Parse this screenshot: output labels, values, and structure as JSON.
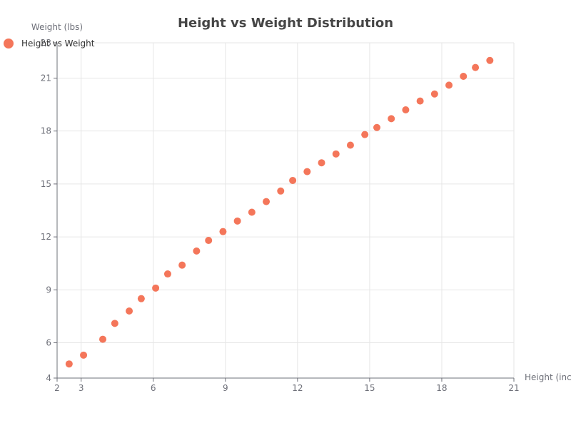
{
  "chart_data": {
    "type": "scatter",
    "title": "Height vs Weight Distribution",
    "xlabel": "Height (inches)",
    "ylabel": "Weight (lbs)",
    "xlim": [
      2,
      21
    ],
    "ylim": [
      4,
      23
    ],
    "x_ticks": [
      2,
      3,
      6,
      9,
      12,
      15,
      18,
      21
    ],
    "y_ticks": [
      4,
      6,
      9,
      12,
      15,
      18,
      21,
      23
    ],
    "grid": true,
    "legend": {
      "position": "top-left",
      "entries": [
        "Height vs Weight"
      ]
    },
    "series": [
      {
        "name": "Height vs Weight",
        "color": "#f4765a",
        "points": [
          [
            2.5,
            4.8
          ],
          [
            3.1,
            5.3
          ],
          [
            3.9,
            6.2
          ],
          [
            4.4,
            7.1
          ],
          [
            5.0,
            7.8
          ],
          [
            5.5,
            8.5
          ],
          [
            6.1,
            9.1
          ],
          [
            6.6,
            9.9
          ],
          [
            7.2,
            10.4
          ],
          [
            7.8,
            11.2
          ],
          [
            8.3,
            11.8
          ],
          [
            8.9,
            12.3
          ],
          [
            9.5,
            12.9
          ],
          [
            10.1,
            13.4
          ],
          [
            10.7,
            14.0
          ],
          [
            11.3,
            14.6
          ],
          [
            11.8,
            15.2
          ],
          [
            12.4,
            15.7
          ],
          [
            13.0,
            16.2
          ],
          [
            13.6,
            16.7
          ],
          [
            14.2,
            17.2
          ],
          [
            14.8,
            17.8
          ],
          [
            15.3,
            18.2
          ],
          [
            15.9,
            18.7
          ],
          [
            16.5,
            19.2
          ],
          [
            17.1,
            19.7
          ],
          [
            17.7,
            20.1
          ],
          [
            18.3,
            20.6
          ],
          [
            18.9,
            21.1
          ],
          [
            19.4,
            21.6
          ],
          [
            20.0,
            22.0
          ]
        ]
      }
    ]
  }
}
